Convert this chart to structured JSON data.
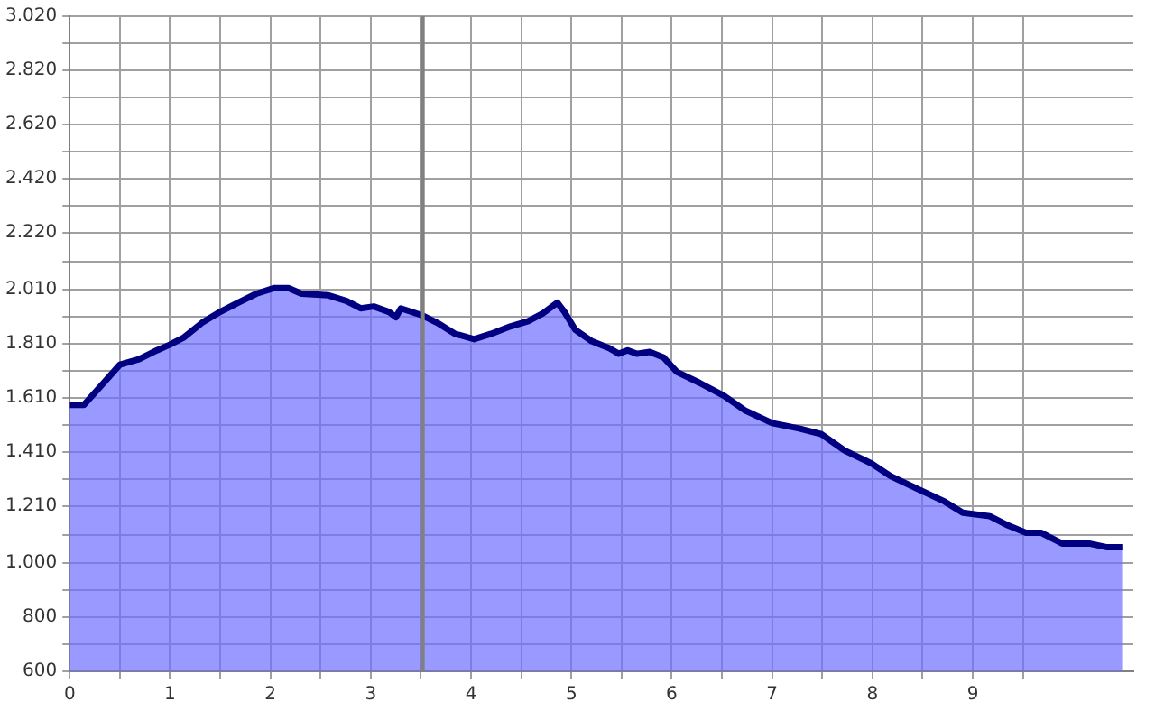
{
  "chart_data": {
    "type": "area",
    "x": [
      0,
      0.14,
      0.32,
      0.5,
      0.69,
      0.87,
      1.0,
      1.14,
      1.32,
      1.5,
      1.68,
      1.86,
      2.04,
      2.18,
      2.31,
      2.58,
      2.76,
      2.9,
      3.03,
      3.18,
      3.25,
      3.3,
      3.52,
      3.66,
      3.84,
      4.03,
      4.2,
      4.39,
      4.57,
      4.71,
      4.86,
      4.93,
      5.04,
      5.2,
      5.38,
      5.47,
      5.56,
      5.65,
      5.78,
      5.92,
      6.05,
      6.28,
      6.52,
      6.73,
      7.0,
      7.27,
      7.49,
      7.72,
      7.99,
      8.18,
      8.45,
      8.72,
      8.9,
      9.17,
      9.35,
      9.53,
      9.68,
      9.89,
      10.16,
      10.34,
      10.49
    ],
    "series": [
      {
        "color": "#000080",
        "values": [
          1584,
          1584,
          1658,
          1733,
          1753,
          1786,
          1807,
          1834,
          1888,
          1928,
          1962,
          1995,
          2016,
          2016,
          1995,
          1989,
          1968,
          1941,
          1948,
          1928,
          1908,
          1941,
          1914,
          1888,
          1847,
          1827,
          1847,
          1874,
          1894,
          1921,
          1962,
          1928,
          1861,
          1820,
          1793,
          1773,
          1786,
          1773,
          1780,
          1759,
          1706,
          1665,
          1618,
          1564,
          1517,
          1497,
          1476,
          1416,
          1368,
          1321,
          1274,
          1227,
          1186,
          1173,
          1139,
          1112,
          1112,
          1072,
          1072,
          1058,
          1058
        ]
      }
    ],
    "xlim": [
      0,
      10.6
    ],
    "xticks": [
      0,
      {
        "value": 0.5,
        "label": null
      },
      1,
      {
        "value": 1.5,
        "label": null
      },
      2,
      {
        "value": 2.5,
        "label": null
      },
      3,
      {
        "value": 3.5,
        "label": null
      },
      4,
      {
        "value": 4.5,
        "label": null
      },
      5,
      {
        "value": 5.5,
        "label": null
      },
      6,
      {
        "value": 6.5,
        "label": null
      },
      7,
      {
        "value": 7.5,
        "label": null
      },
      8,
      {
        "value": 8.5,
        "label": null
      },
      9,
      {
        "value": 9.5,
        "label": null
      }
    ],
    "ylim": [
      600,
      3020
    ],
    "yticks": [
      600,
      {
        "value": 700,
        "label": null
      },
      800,
      {
        "value": 900,
        "label": null
      },
      {
        "value": 1000,
        "label": "1.000"
      },
      {
        "value": 1105,
        "label": null
      },
      {
        "value": 1210,
        "label": "1.210"
      },
      {
        "value": 1310,
        "label": null
      },
      {
        "value": 1410,
        "label": "1.410"
      },
      {
        "value": 1510,
        "label": null
      },
      {
        "value": 1610,
        "label": "1.610"
      },
      {
        "value": 1710,
        "label": null
      },
      {
        "value": 1810,
        "label": "1.810"
      },
      {
        "value": 1910,
        "label": null
      },
      {
        "value": 2010,
        "label": "2.010"
      },
      {
        "value": 2115,
        "label": null
      },
      {
        "value": 2220,
        "label": "2.220"
      },
      {
        "value": 2320,
        "label": null
      },
      {
        "value": 2420,
        "label": "2.420"
      },
      {
        "value": 2520,
        "label": null
      },
      {
        "value": 2620,
        "label": "2.620"
      },
      {
        "value": 2720,
        "label": null
      },
      {
        "value": 2820,
        "label": "2.820"
      },
      {
        "value": 2920,
        "label": null
      },
      {
        "value": 3020,
        "label": "3.020"
      }
    ],
    "grid": true,
    "ref_lines": [
      {
        "axis": "x",
        "value": 3.52,
        "color": "#808080"
      }
    ]
  }
}
